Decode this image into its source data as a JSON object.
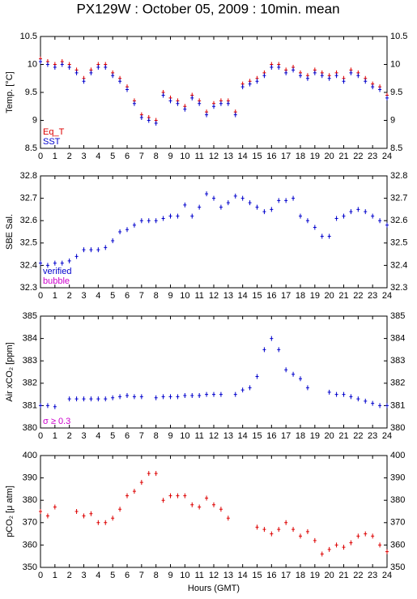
{
  "chart_data": [
    {
      "type": "scatter",
      "title": "PX129W : October 05, 2009 : 10min. mean",
      "y_label": "Temp. [°C]",
      "x": [
        0,
        0.5,
        1,
        1.5,
        2,
        2.5,
        3,
        3.5,
        4,
        4.5,
        5,
        5.5,
        6,
        6.5,
        7,
        7.5,
        8,
        8.5,
        9,
        9.5,
        10,
        10.5,
        11,
        11.5,
        12,
        12.5,
        13,
        13.5,
        14,
        14.5,
        15,
        15.5,
        16,
        16.5,
        17,
        17.5,
        18,
        18.5,
        19,
        19.5,
        20,
        20.5,
        21,
        21.5,
        22,
        22.5,
        23,
        23.5,
        24
      ],
      "series": [
        {
          "name": "Eq_T",
          "color": "#dd0000",
          "values": [
            10.1,
            10.05,
            10.0,
            10.05,
            10.0,
            9.9,
            9.75,
            9.9,
            10.0,
            10.0,
            9.85,
            9.75,
            9.6,
            9.35,
            9.1,
            9.05,
            9.0,
            9.5,
            9.4,
            9.35,
            9.25,
            9.45,
            9.35,
            9.15,
            9.3,
            9.35,
            9.35,
            9.15,
            9.65,
            9.7,
            9.75,
            9.85,
            10.0,
            10.0,
            9.9,
            9.95,
            9.85,
            9.8,
            9.9,
            9.85,
            9.8,
            9.85,
            9.75,
            9.9,
            9.85,
            9.75,
            9.65,
            9.6,
            9.45
          ]
        },
        {
          "name": "SST",
          "color": "#0000cc",
          "values": [
            10.05,
            10.0,
            9.95,
            10.0,
            9.95,
            9.85,
            9.7,
            9.85,
            9.95,
            9.95,
            9.8,
            9.7,
            9.55,
            9.3,
            9.05,
            9.0,
            8.95,
            9.45,
            9.35,
            9.3,
            9.2,
            9.4,
            9.3,
            9.1,
            9.25,
            9.3,
            9.3,
            9.1,
            9.6,
            9.65,
            9.7,
            9.8,
            9.95,
            9.95,
            9.85,
            9.9,
            9.8,
            9.75,
            9.85,
            9.8,
            9.75,
            9.8,
            9.7,
            9.85,
            9.8,
            9.7,
            9.6,
            9.55,
            9.4
          ]
        }
      ],
      "xlim": [
        0,
        24
      ],
      "xticks": [
        0,
        1,
        2,
        3,
        4,
        5,
        6,
        7,
        8,
        9,
        10,
        11,
        12,
        13,
        14,
        15,
        16,
        17,
        18,
        19,
        20,
        21,
        22,
        23,
        24
      ],
      "ylim": [
        8.5,
        10.5
      ],
      "yticks": [
        8.5,
        9,
        9.5,
        10,
        10.5
      ]
    },
    {
      "type": "scatter",
      "y_label": "SBE Sal.",
      "x": [
        0,
        0.5,
        1,
        1.5,
        2,
        2.5,
        3,
        3.5,
        4,
        4.5,
        5,
        5.5,
        6,
        6.5,
        7,
        7.5,
        8,
        8.5,
        9,
        9.5,
        10,
        10.5,
        11,
        11.5,
        12,
        12.5,
        13,
        13.5,
        14,
        14.5,
        15,
        15.5,
        16,
        16.5,
        17,
        17.5,
        18,
        18.5,
        19,
        19.5,
        20,
        20.5,
        21,
        21.5,
        22,
        22.5,
        23,
        23.5,
        24
      ],
      "series": [
        {
          "name": "verified",
          "color": "#0000cc",
          "values": [
            32.41,
            32.4,
            32.41,
            32.41,
            32.42,
            32.44,
            32.47,
            32.47,
            32.47,
            32.48,
            32.51,
            32.55,
            32.56,
            32.58,
            32.6,
            32.6,
            32.6,
            32.61,
            32.62,
            32.62,
            32.67,
            32.62,
            32.66,
            32.72,
            32.7,
            32.66,
            32.68,
            32.71,
            32.7,
            32.68,
            32.66,
            32.64,
            32.65,
            32.69,
            32.69,
            32.7,
            32.62,
            32.6,
            32.57,
            32.53,
            32.53,
            32.61,
            32.62,
            32.64,
            32.65,
            32.64,
            32.62,
            32.6,
            32.58
          ]
        },
        {
          "name": "bubble",
          "color": "#cc00cc",
          "values": [
            null,
            null,
            null,
            null,
            null,
            null,
            null,
            null,
            null,
            null,
            null,
            null,
            null,
            null,
            null,
            null,
            null,
            null,
            null,
            null,
            null,
            null,
            null,
            null,
            null,
            null,
            null,
            null,
            null,
            null,
            null,
            null,
            null,
            null,
            null,
            null,
            null,
            null,
            null,
            null,
            null,
            null,
            null,
            null,
            null,
            null,
            null,
            null,
            null
          ]
        }
      ],
      "xlim": [
        0,
        24
      ],
      "xticks": [
        0,
        1,
        2,
        3,
        4,
        5,
        6,
        7,
        8,
        9,
        10,
        11,
        12,
        13,
        14,
        15,
        16,
        17,
        18,
        19,
        20,
        21,
        22,
        23,
        24
      ],
      "ylim": [
        32.3,
        32.8
      ],
      "yticks": [
        32.3,
        32.4,
        32.5,
        32.6,
        32.7,
        32.8
      ]
    },
    {
      "type": "scatter",
      "y_label": "Air xCO₂ [ppm]",
      "x": [
        0,
        0.5,
        1,
        1.5,
        2,
        2.5,
        3,
        3.5,
        4,
        4.5,
        5,
        5.5,
        6,
        6.5,
        7,
        7.5,
        8,
        8.5,
        9,
        9.5,
        10,
        10.5,
        11,
        11.5,
        12,
        12.5,
        13,
        13.5,
        14,
        14.5,
        15,
        15.5,
        16,
        16.5,
        17,
        17.5,
        18,
        18.5,
        19,
        19.5,
        20,
        20.5,
        21,
        21.5,
        22,
        22.5,
        23,
        23.5,
        24
      ],
      "series": [
        {
          "color": "#0000cc",
          "values": [
            381.0,
            381.0,
            380.95,
            null,
            381.3,
            381.3,
            381.3,
            381.3,
            381.3,
            381.3,
            381.35,
            381.4,
            381.45,
            381.4,
            381.4,
            null,
            381.35,
            381.4,
            381.4,
            381.4,
            381.45,
            381.45,
            381.45,
            381.5,
            381.5,
            381.5,
            null,
            381.5,
            381.7,
            381.8,
            382.3,
            383.5,
            384.0,
            383.5,
            382.6,
            382.4,
            382.2,
            381.8,
            null,
            null,
            381.6,
            381.5,
            381.5,
            381.4,
            381.3,
            381.2,
            381.1,
            381.0,
            381.0
          ]
        },
        {
          "name": "σ ≥ 0.3",
          "color": "#cc00cc",
          "values": [
            null,
            null,
            null,
            null,
            null,
            null,
            null,
            null,
            null,
            null,
            null,
            null,
            null,
            null,
            null,
            null,
            null,
            null,
            null,
            null,
            null,
            null,
            null,
            null,
            null,
            null,
            null,
            null,
            null,
            null,
            null,
            null,
            null,
            null,
            null,
            null,
            null,
            null,
            null,
            null,
            null,
            null,
            null,
            null,
            null,
            null,
            null,
            null,
            null
          ]
        }
      ],
      "xlim": [
        0,
        24
      ],
      "xticks": [
        0,
        1,
        2,
        3,
        4,
        5,
        6,
        7,
        8,
        9,
        10,
        11,
        12,
        13,
        14,
        15,
        16,
        17,
        18,
        19,
        20,
        21,
        22,
        23,
        24
      ],
      "ylim": [
        380,
        385
      ],
      "yticks": [
        380,
        381,
        382,
        383,
        384,
        385
      ]
    },
    {
      "type": "scatter",
      "y_label": "pCO₂ [μ atm]",
      "x_label": "Hours (GMT)",
      "x": [
        0,
        0.5,
        1,
        1.5,
        2,
        2.5,
        3,
        3.5,
        4,
        4.5,
        5,
        5.5,
        6,
        6.5,
        7,
        7.5,
        8,
        8.5,
        9,
        9.5,
        10,
        10.5,
        11,
        11.5,
        12,
        12.5,
        13,
        13.5,
        14,
        14.5,
        15,
        15.5,
        16,
        16.5,
        17,
        17.5,
        18,
        18.5,
        19,
        19.5,
        20,
        20.5,
        21,
        21.5,
        22,
        22.5,
        23,
        23.5,
        24
      ],
      "series": [
        {
          "color": "#dd0000",
          "values": [
            375,
            373,
            377,
            null,
            null,
            375,
            373,
            374,
            370,
            370,
            372,
            376,
            382,
            384,
            388,
            392,
            392,
            380,
            382,
            382,
            382,
            378,
            377,
            381,
            378,
            376,
            372,
            null,
            null,
            null,
            368,
            367,
            365,
            367,
            370,
            367,
            364,
            366,
            362,
            356,
            358,
            360,
            359,
            361,
            364,
            365,
            364,
            360,
            357
          ]
        }
      ],
      "xlim": [
        0,
        24
      ],
      "xticks": [
        0,
        1,
        2,
        3,
        4,
        5,
        6,
        7,
        8,
        9,
        10,
        11,
        12,
        13,
        14,
        15,
        16,
        17,
        18,
        19,
        20,
        21,
        22,
        23,
        24
      ],
      "ylim": [
        350,
        400
      ],
      "yticks": [
        350,
        360,
        370,
        380,
        390,
        400
      ]
    }
  ]
}
